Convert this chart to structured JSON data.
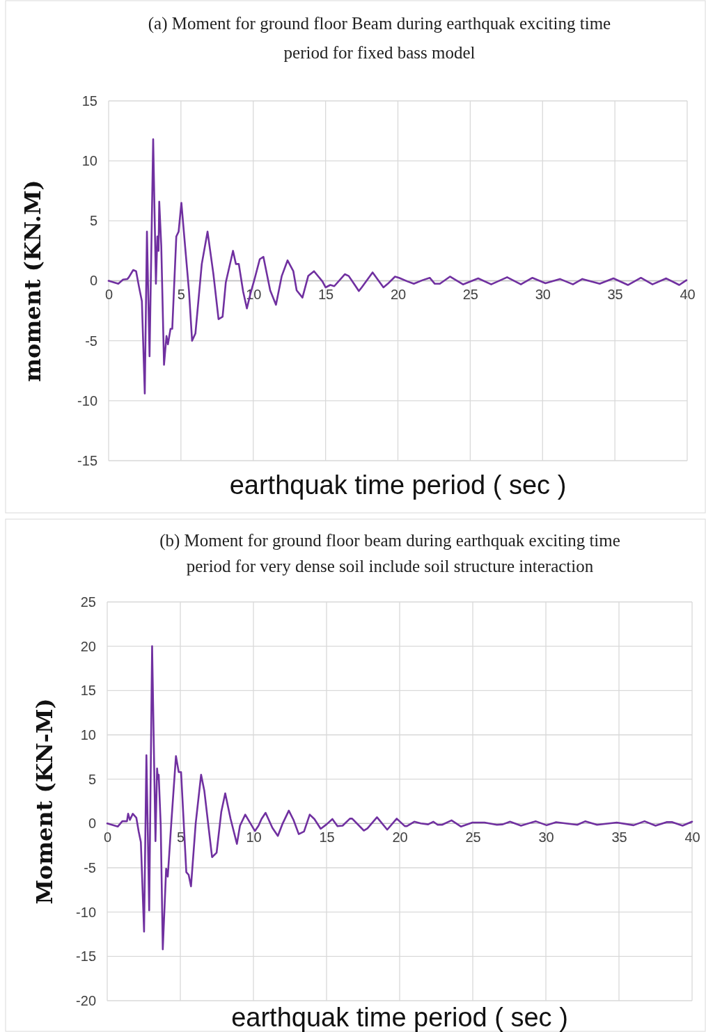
{
  "chart_data": [
    {
      "type": "line",
      "title": "(a) Moment for ground floor Beam during earthquak  exciting time period for fixed bass model",
      "xlabel": "earthquak time period ( sec )",
      "ylabel": "moment (KN.M)",
      "xlim": [
        0,
        40
      ],
      "xticks": [
        0,
        5,
        10,
        15,
        20,
        25,
        30,
        35,
        40
      ],
      "ylim": [
        -15,
        15
      ],
      "yticks": [
        -15,
        -10,
        -5,
        0,
        5,
        10,
        15
      ],
      "grid": true,
      "marker": "none",
      "line_style": "solid",
      "series": [
        {
          "color": "#7030a0",
          "x": [
            0,
            0.67,
            1.0,
            1.3,
            1.4,
            1.7,
            1.9,
            2.1,
            2.3,
            2.5,
            2.65,
            2.83,
            3.08,
            3.27,
            3.37,
            3.45,
            3.5,
            3.64,
            3.83,
            4.0,
            4.1,
            4.28,
            4.4,
            4.68,
            4.84,
            5.03,
            5.3,
            5.56,
            5.77,
            6.0,
            6.44,
            6.84,
            7.24,
            7.6,
            7.88,
            8.1,
            8.6,
            8.8,
            9.0,
            9.3,
            9.56,
            9.8,
            10.1,
            10.45,
            10.7,
            11.17,
            11.57,
            11.97,
            12.37,
            12.77,
            13.0,
            13.4,
            13.8,
            14.2,
            14.78,
            15.0,
            15.33,
            15.6,
            16.33,
            16.6,
            17.3,
            17.5,
            18.25,
            19.0,
            19.3,
            19.8,
            20.08,
            20.66,
            21.1,
            21.7,
            22.2,
            22.55,
            22.9,
            23.6,
            24.5,
            25.55,
            26.45,
            27.55,
            28.5,
            29.3,
            30.2,
            31.2,
            32.1,
            32.75,
            33.95,
            34.9,
            35.9,
            36.8,
            37.6,
            38.55,
            39.45,
            39.95
          ],
          "values": [
            0,
            -0.25,
            0.1,
            0.15,
            0.3,
            0.9,
            0.8,
            -0.5,
            -1.7,
            -9.4,
            4.1,
            -6.3,
            11.8,
            -0.25,
            3.7,
            2.5,
            6.6,
            2.9,
            -7.0,
            -4.6,
            -5.3,
            -4.0,
            -4.0,
            3.7,
            4.1,
            6.5,
            2.7,
            -0.9,
            -5.0,
            -4.4,
            1.4,
            4.1,
            0.6,
            -3.2,
            -3.0,
            -0.15,
            2.5,
            1.4,
            1.4,
            -0.9,
            -2.3,
            -1.1,
            0.2,
            1.8,
            2.0,
            -0.8,
            -2.0,
            0.4,
            1.7,
            0.8,
            -0.8,
            -1.4,
            0.4,
            0.8,
            -0.05,
            -0.55,
            -0.35,
            -0.45,
            0.55,
            0.4,
            -0.85,
            -0.55,
            0.7,
            -0.55,
            -0.25,
            0.35,
            0.25,
            -0.05,
            -0.25,
            0.05,
            0.25,
            -0.25,
            -0.25,
            0.35,
            -0.3,
            0.2,
            -0.3,
            0.3,
            -0.3,
            0.25,
            -0.2,
            0.15,
            -0.3,
            0.15,
            -0.25,
            0.2,
            -0.35,
            0.25,
            -0.3,
            0.2,
            -0.35,
            0.05
          ]
        }
      ]
    },
    {
      "type": "line",
      "title": "(b) Moment for ground floor beam during earthquak  exciting time period for very dense soil include soil structure interaction",
      "xlabel": "earthquak time period ( sec )",
      "ylabel": "Moment (KN-M)",
      "xlim": [
        0,
        40
      ],
      "xticks": [
        0,
        5,
        10,
        15,
        20,
        25,
        30,
        35,
        40
      ],
      "ylim": [
        -20,
        25
      ],
      "yticks": [
        -20,
        -15,
        -10,
        -5,
        0,
        5,
        10,
        15,
        20,
        25
      ],
      "grid": true,
      "marker": "none",
      "line_style": "solid",
      "series": [
        {
          "color": "#7030a0",
          "x": [
            0,
            0.72,
            1.03,
            1.35,
            1.43,
            1.55,
            1.75,
            1.99,
            2.15,
            2.3,
            2.52,
            2.68,
            2.87,
            3.07,
            3.3,
            3.41,
            3.47,
            3.52,
            3.66,
            3.8,
            4.03,
            4.14,
            4.38,
            4.7,
            4.89,
            5.05,
            5.41,
            5.57,
            5.73,
            6.05,
            6.42,
            6.64,
            7.17,
            7.48,
            7.8,
            8.07,
            8.44,
            8.87,
            9.08,
            9.44,
            9.8,
            10.1,
            10.35,
            10.55,
            10.83,
            11.3,
            11.67,
            12.0,
            12.42,
            12.74,
            13.1,
            13.46,
            13.85,
            14.17,
            14.6,
            15.0,
            15.4,
            15.75,
            16.1,
            16.6,
            16.75,
            17.55,
            17.8,
            18.45,
            19.15,
            19.8,
            20.35,
            20.5,
            21.0,
            21.45,
            21.95,
            22.3,
            22.6,
            22.9,
            23.55,
            24.2,
            24.98,
            25.8,
            26.65,
            27.05,
            27.55,
            28.3,
            29.3,
            30.05,
            30.7,
            31.65,
            32.15,
            32.7,
            33.5,
            34.85,
            36.0,
            36.75,
            37.5,
            38.25,
            38.65,
            39.35,
            40.0
          ],
          "values": [
            0,
            -0.35,
            0.25,
            0.25,
            1.1,
            0.4,
            1.1,
            0.65,
            -0.9,
            -2.1,
            -12.2,
            7.7,
            -9.8,
            20.0,
            -2.0,
            6.2,
            5.0,
            5.5,
            -0.25,
            -14.2,
            -5.1,
            -6.0,
            0,
            7.6,
            5.8,
            5.8,
            -5.5,
            -5.8,
            -7.1,
            0,
            5.5,
            3.7,
            -3.8,
            -3.3,
            1.3,
            3.4,
            0.5,
            -2.3,
            -0.25,
            1.0,
            0,
            -0.85,
            -0.25,
            0.5,
            1.2,
            -0.5,
            -1.4,
            0,
            1.45,
            0.4,
            -1.2,
            -0.9,
            1.0,
            0.5,
            -0.6,
            -0.1,
            0.5,
            -0.3,
            -0.25,
            0.55,
            0.55,
            -0.8,
            -0.55,
            0.7,
            -0.7,
            0.55,
            -0.3,
            -0.3,
            0.2,
            0,
            -0.1,
            0.2,
            -0.15,
            -0.15,
            0.35,
            -0.35,
            0.1,
            0.1,
            -0.15,
            -0.1,
            0.2,
            -0.25,
            0.25,
            -0.2,
            0.15,
            -0.05,
            -0.15,
            0.25,
            -0.15,
            0.1,
            -0.2,
            0.25,
            -0.25,
            0.15,
            0.15,
            -0.25,
            0.2
          ]
        }
      ]
    }
  ]
}
